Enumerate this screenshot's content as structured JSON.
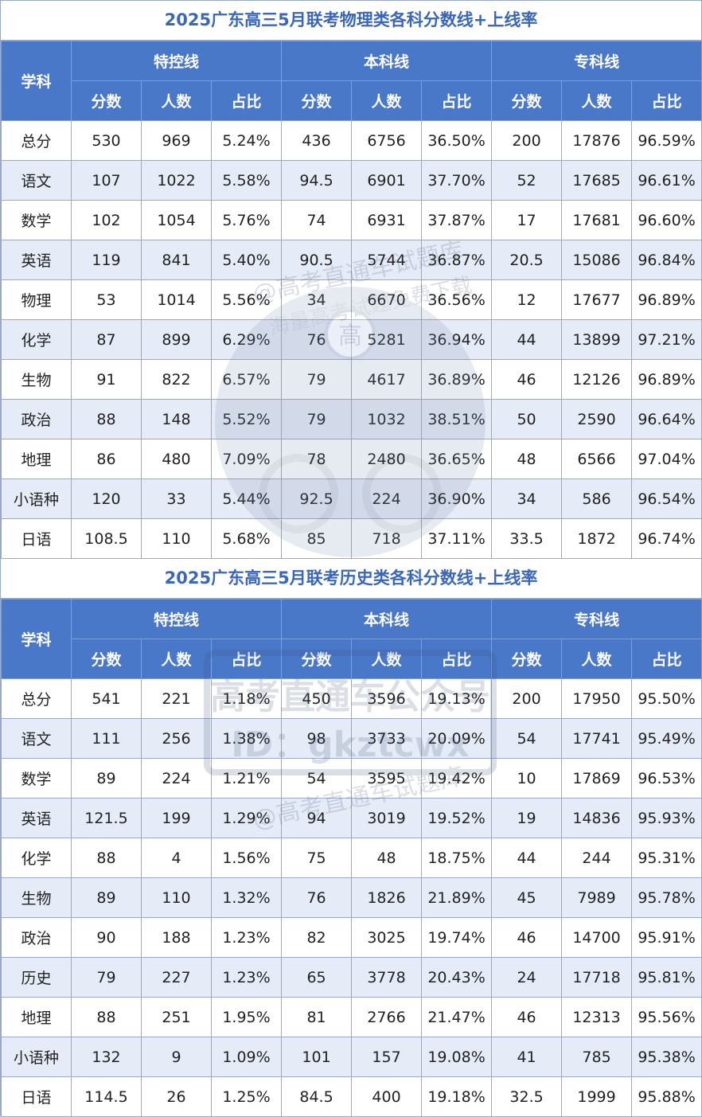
{
  "tables": [
    {
      "title": "2025广东高三5月联考物理类各科分数线+上线率",
      "subject_header": "学科",
      "groups": [
        "特控线",
        "本科线",
        "专科线"
      ],
      "subheaders": [
        "分数",
        "人数",
        "占比"
      ],
      "rows": [
        [
          "总分",
          "530",
          "969",
          "5.24%",
          "436",
          "6756",
          "36.50%",
          "200",
          "17876",
          "96.59%"
        ],
        [
          "语文",
          "107",
          "1022",
          "5.58%",
          "94.5",
          "6901",
          "37.70%",
          "52",
          "17685",
          "96.61%"
        ],
        [
          "数学",
          "102",
          "1054",
          "5.76%",
          "74",
          "6931",
          "37.87%",
          "17",
          "17681",
          "96.60%"
        ],
        [
          "英语",
          "119",
          "841",
          "5.40%",
          "90.5",
          "5744",
          "36.87%",
          "20.5",
          "15086",
          "96.84%"
        ],
        [
          "物理",
          "53",
          "1014",
          "5.56%",
          "34",
          "6670",
          "36.56%",
          "12",
          "17677",
          "96.89%"
        ],
        [
          "化学",
          "87",
          "899",
          "6.29%",
          "76",
          "5281",
          "36.94%",
          "44",
          "13899",
          "97.21%"
        ],
        [
          "生物",
          "91",
          "822",
          "6.57%",
          "79",
          "4617",
          "36.89%",
          "46",
          "12126",
          "96.89%"
        ],
        [
          "政治",
          "88",
          "148",
          "5.52%",
          "79",
          "1032",
          "38.51%",
          "50",
          "2590",
          "96.64%"
        ],
        [
          "地理",
          "86",
          "480",
          "7.09%",
          "78",
          "2480",
          "36.65%",
          "48",
          "6566",
          "97.04%"
        ],
        [
          "小语种",
          "120",
          "33",
          "5.44%",
          "92.5",
          "224",
          "36.90%",
          "34",
          "586",
          "96.54%"
        ],
        [
          "日语",
          "108.5",
          "110",
          "5.68%",
          "85",
          "718",
          "37.11%",
          "33.5",
          "1872",
          "96.74%"
        ]
      ]
    },
    {
      "title": "2025广东高三5月联考历史类各科分数线+上线率",
      "subject_header": "学科",
      "groups": [
        "特控线",
        "本科线",
        "专科线"
      ],
      "subheaders": [
        "分数",
        "人数",
        "占比"
      ],
      "rows": [
        [
          "总分",
          "541",
          "221",
          "1.18%",
          "450",
          "3596",
          "19.13%",
          "200",
          "17950",
          "95.50%"
        ],
        [
          "语文",
          "111",
          "256",
          "1.38%",
          "98",
          "3733",
          "20.09%",
          "54",
          "17741",
          "95.49%"
        ],
        [
          "数学",
          "89",
          "224",
          "1.21%",
          "54",
          "3595",
          "19.42%",
          "10",
          "17869",
          "96.53%"
        ],
        [
          "英语",
          "121.5",
          "199",
          "1.29%",
          "94",
          "3019",
          "19.52%",
          "19",
          "14836",
          "95.93%"
        ],
        [
          "化学",
          "88",
          "4",
          "1.56%",
          "75",
          "48",
          "18.75%",
          "44",
          "244",
          "95.31%"
        ],
        [
          "生物",
          "89",
          "110",
          "1.32%",
          "76",
          "1826",
          "21.89%",
          "45",
          "7989",
          "95.78%"
        ],
        [
          "政治",
          "90",
          "188",
          "1.23%",
          "82",
          "3025",
          "19.74%",
          "46",
          "14700",
          "95.91%"
        ],
        [
          "历史",
          "79",
          "227",
          "1.23%",
          "65",
          "3778",
          "20.43%",
          "24",
          "17718",
          "95.81%"
        ],
        [
          "地理",
          "88",
          "251",
          "1.95%",
          "81",
          "2766",
          "21.47%",
          "46",
          "12313",
          "95.56%"
        ],
        [
          "小语种",
          "132",
          "9",
          "1.09%",
          "101",
          "157",
          "19.08%",
          "41",
          "785",
          "95.38%"
        ],
        [
          "日语",
          "114.5",
          "26",
          "1.25%",
          "84.5",
          "400",
          "19.18%",
          "32.5",
          "1999",
          "95.88%"
        ]
      ]
    }
  ],
  "watermark": {
    "line1": "高考直通车公众号",
    "line2": "ID：gkztcwx",
    "line3": "@高考直通车试题库",
    "line4": "海量高考试题免费下载",
    "badge": "高"
  }
}
